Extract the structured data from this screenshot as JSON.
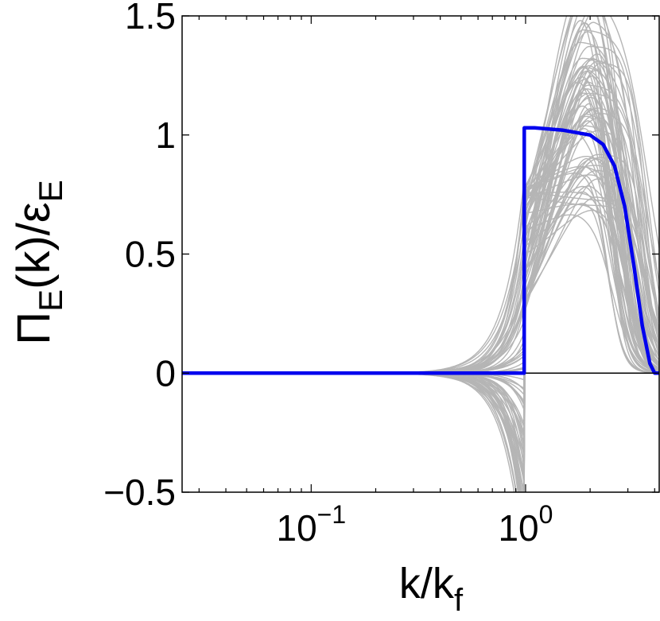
{
  "chart_data": {
    "type": "line",
    "xscale": "log",
    "xlabel": {
      "main": "k/k",
      "sub": "f"
    },
    "ylabel": {
      "pre": "Π",
      "sub1": "E",
      "mid": "(k)/ε",
      "sub2": "E"
    },
    "xlim": [
      0.025,
      4.2
    ],
    "ylim": [
      -0.5,
      1.5
    ],
    "x_ticks": [
      {
        "value": 0.1,
        "base": "10",
        "exp": "−1"
      },
      {
        "value": 1,
        "base": "10",
        "exp": "0"
      }
    ],
    "y_ticks": [
      {
        "value": -0.5,
        "label": "−0.5"
      },
      {
        "value": 0,
        "label": "0"
      },
      {
        "value": 0.5,
        "label": "0.5"
      },
      {
        "value": 1,
        "label": "1"
      },
      {
        "value": 1.5,
        "label": "1.5"
      }
    ],
    "grid": false,
    "zero_line": true,
    "colors": {
      "mean": "#0000ee",
      "ensemble": "#b5b5b5",
      "axes": "#000000"
    },
    "ensemble_count": 80,
    "ensemble_description": "gray individual realizations scattered around the mean",
    "series": [
      {
        "role": "mean",
        "x": [
          0.025,
          0.3,
          0.5,
          0.8,
          0.985,
          0.986,
          1.1,
          1.5,
          2.0,
          2.3,
          2.6,
          2.9,
          3.2,
          3.5,
          3.8,
          4.0,
          4.2
        ],
        "y": [
          0,
          0,
          0,
          0,
          0,
          1.03,
          1.03,
          1.02,
          1.0,
          0.96,
          0.87,
          0.7,
          0.45,
          0.2,
          0.04,
          0.0,
          0.0
        ]
      }
    ]
  }
}
